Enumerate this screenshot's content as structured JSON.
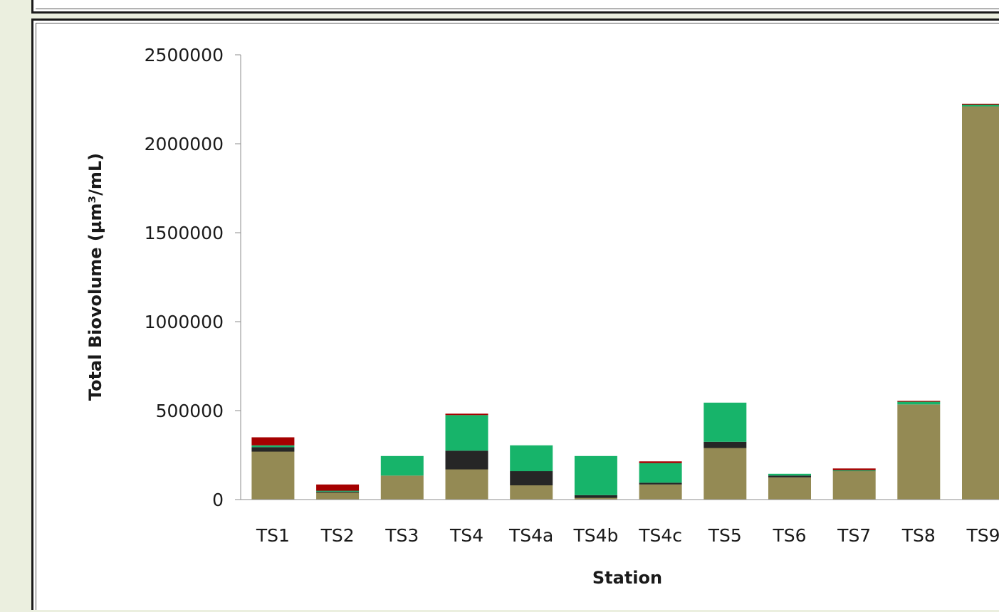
{
  "chart_data": {
    "type": "bar",
    "stacked": true,
    "title": "",
    "xlabel": "Station",
    "ylabel": "Total Biovolume (µm³/mL)",
    "ylim": [
      0,
      2500000
    ],
    "yticks": [
      0,
      500000,
      1000000,
      1500000,
      2000000,
      2500000
    ],
    "ytick_labels": [
      "0",
      "500000",
      "1000000",
      "1500000",
      "2000000",
      "2500000"
    ],
    "grid": false,
    "legend": "none",
    "categories": [
      "TS1",
      "TS2",
      "TS3",
      "TS4",
      "TS4a",
      "TS4b",
      "TS4c",
      "TS5",
      "TS6",
      "TS7",
      "TS8",
      "TS9"
    ],
    "series": [
      {
        "color": "#948a54",
        "values": [
          270000,
          40000,
          135000,
          170000,
          80000,
          10000,
          85000,
          290000,
          125000,
          160000,
          535000,
          2210000
        ]
      },
      {
        "color": "#262626",
        "values": [
          25000,
          5000,
          0,
          105000,
          80000,
          15000,
          10000,
          35000,
          10000,
          0,
          0,
          0
        ]
      },
      {
        "color": "#17b46a",
        "values": [
          10000,
          5000,
          110000,
          200000,
          145000,
          220000,
          110000,
          220000,
          10000,
          5000,
          15000,
          10000
        ]
      },
      {
        "color": "#a50000",
        "values": [
          45000,
          35000,
          0,
          8000,
          0,
          0,
          10000,
          0,
          0,
          10000,
          5000,
          5000
        ]
      }
    ]
  }
}
